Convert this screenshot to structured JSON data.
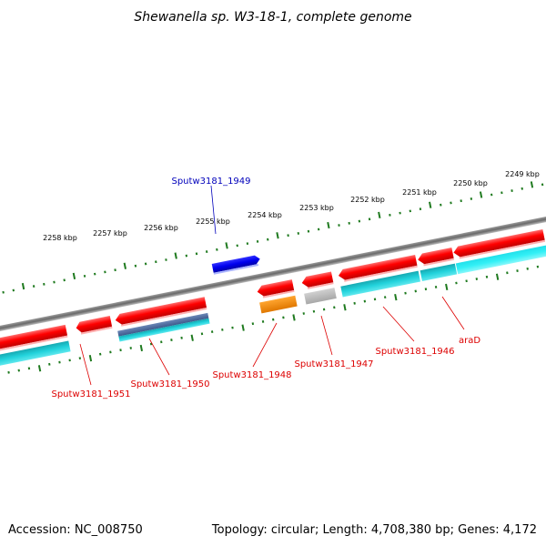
{
  "title": "Shewanella sp. W3-18-1, complete genome",
  "accession": "Accession: NC_008750",
  "topology": "Topology: circular; Length: 4,708,380 bp; Genes: 4,172",
  "colors": {
    "backbone": "#7a7a7a",
    "tick": "#1f7a1f",
    "gene_forward": "#0000ee",
    "gene_red": "#ff0000",
    "gene_cds": "#22d3dc",
    "gene_cds_dark": "#17a9b2",
    "gene_blue_grey": "#5577aa",
    "gene_orange": "#ff8c00",
    "gene_grey": "#bbbbbb",
    "label_forward": "#0000bb",
    "label_reverse": "#dd0000"
  },
  "ruler_labels": [
    "2258 kbp",
    "2257 kbp",
    "2256 kbp",
    "2255 kbp",
    "2254 kbp",
    "2253 kbp",
    "2252 kbp",
    "2251 kbp",
    "2250 kbp",
    "2249 kbp"
  ],
  "gene_labels": [
    {
      "text": "Sputw3181_1949",
      "strand": "forward"
    },
    {
      "text": "Sputw3181_1951",
      "strand": "reverse"
    },
    {
      "text": "Sputw3181_1950",
      "strand": "reverse"
    },
    {
      "text": "Sputw3181_1948",
      "strand": "reverse"
    },
    {
      "text": "Sputw3181_1947",
      "strand": "reverse"
    },
    {
      "text": "Sputw3181_1946",
      "strand": "reverse"
    },
    {
      "text": "araD",
      "strand": "reverse"
    }
  ]
}
